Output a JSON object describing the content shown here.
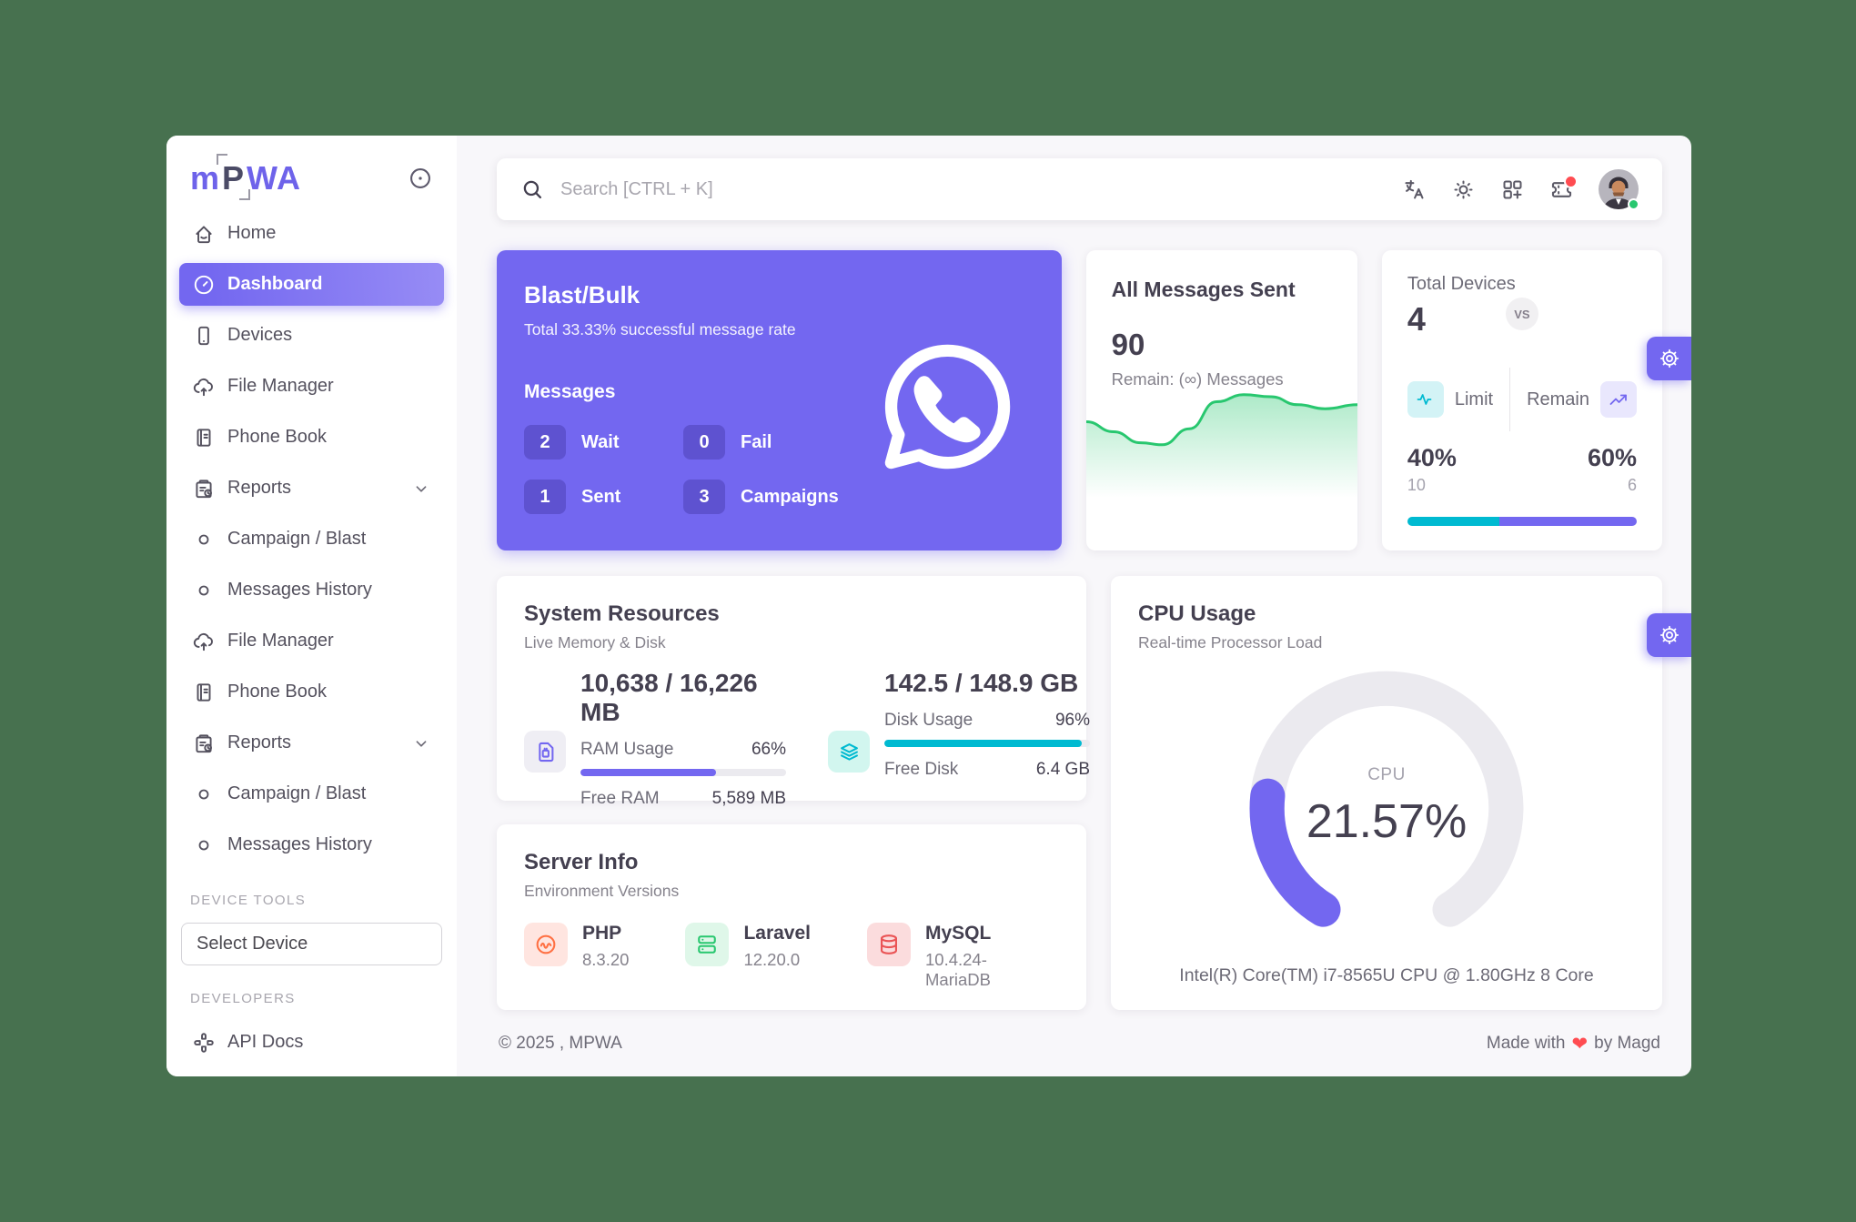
{
  "theme": {
    "primary": "#7367F0",
    "teal": "#00BAD1",
    "green": "#28C76F",
    "red": "#EA5455",
    "orange": "#FF7043",
    "outer_bg": "#47714F"
  },
  "sidebar": {
    "logo": {
      "p1": "m",
      "p2": "P",
      "p3": "WA"
    },
    "items": [
      {
        "label": "Home"
      },
      {
        "label": "Dashboard",
        "active": true
      },
      {
        "label": "Devices"
      },
      {
        "label": "File Manager"
      },
      {
        "label": "Phone Book"
      },
      {
        "label": "Reports"
      },
      {
        "label": "Campaign / Blast"
      },
      {
        "label": "Messages History"
      },
      {
        "label": "File Manager"
      },
      {
        "label": "Phone Book"
      },
      {
        "label": "Reports"
      },
      {
        "label": "Campaign / Blast"
      },
      {
        "label": "Messages History"
      }
    ],
    "device_tools_header": "DEVICE TOOLS",
    "select_device_label": "Select Device",
    "developers_header": "DEVELOPERS",
    "api_docs_label": "API Docs"
  },
  "topbar": {
    "search_placeholder": "Search [CTRL + K]"
  },
  "blast_card": {
    "title": "Blast/Bulk",
    "subtitle": "Total 33.33% successful message rate",
    "messages_label": "Messages",
    "stats": [
      {
        "value": "2",
        "label": "Wait"
      },
      {
        "value": "0",
        "label": "Fail"
      },
      {
        "value": "1",
        "label": "Sent"
      },
      {
        "value": "3",
        "label": "Campaigns"
      }
    ]
  },
  "messages_card": {
    "title": "All Messages Sent",
    "count": "90",
    "remain": "Remain: (∞) Messages"
  },
  "devices_card": {
    "title": "Total Devices",
    "count": "4",
    "limit_label": "Limit",
    "remain_label": "Remain",
    "vs": "VS",
    "limit_percent": "40%",
    "remain_percent": "60%",
    "limit_value": "10",
    "remain_value": "6",
    "limit_pct": 40,
    "remain_pct": 60
  },
  "system_card": {
    "title": "System Resources",
    "subtitle": "Live Memory & Disk",
    "ram": {
      "value": "10,638 / 16,226 MB",
      "usage_label": "RAM Usage",
      "usage_percent": "66%",
      "pct": 66,
      "free_label": "Free RAM",
      "free_value": "5,589 MB"
    },
    "disk": {
      "value": "142.5 / 148.9 GB",
      "usage_label": "Disk Usage",
      "usage_percent": "96%",
      "pct": 96,
      "free_label": "Free Disk",
      "free_value": "6.4 GB"
    }
  },
  "server_card": {
    "title": "Server Info",
    "subtitle": "Environment Versions",
    "items": [
      {
        "name": "PHP",
        "version": "8.3.20"
      },
      {
        "name": "Laravel",
        "version": "12.20.0"
      },
      {
        "name": "MySQL",
        "version": "10.4.24-MariaDB"
      }
    ]
  },
  "cpu_card": {
    "title": "CPU Usage",
    "subtitle": "Real-time Processor Load",
    "gauge_label": "CPU",
    "percent_text": "21.57%",
    "percent": 21.57,
    "cpu_info": "Intel(R) Core(TM) i7-8565U CPU @ 1.80GHz 8 Core"
  },
  "footer": {
    "copyright": "© 2025 , MPWA",
    "made_with": "Made with",
    "heart": "❤",
    "by": "by Magd"
  },
  "chart_data": [
    {
      "type": "area",
      "title": "All Messages Sent sparkline",
      "color": "#28C76F",
      "x": [
        0,
        0.1,
        0.2,
        0.28,
        0.38,
        0.48,
        0.58,
        0.68,
        0.78,
        0.88,
        1.0
      ],
      "y": [
        0.65,
        0.55,
        0.44,
        0.42,
        0.58,
        0.85,
        0.92,
        0.9,
        0.82,
        0.78,
        0.82
      ],
      "note": "unlabeled sparkline; values normalized 0-1"
    },
    {
      "type": "gauge",
      "title": "CPU Usage",
      "value": 21.57,
      "max": 100,
      "label": "CPU",
      "color": "#7367F0"
    },
    {
      "type": "bar",
      "title": "Total Devices Limit vs Remain",
      "categories": [
        "Limit",
        "Remain"
      ],
      "values": [
        40,
        60
      ],
      "colors": [
        "#00BAD1",
        "#7367F0"
      ]
    },
    {
      "type": "bar",
      "title": "RAM Usage %",
      "categories": [
        "RAM"
      ],
      "values": [
        66
      ],
      "colors": [
        "#7367F0"
      ]
    },
    {
      "type": "bar",
      "title": "Disk Usage %",
      "categories": [
        "Disk"
      ],
      "values": [
        96
      ],
      "colors": [
        "#00BAD1"
      ]
    }
  ]
}
